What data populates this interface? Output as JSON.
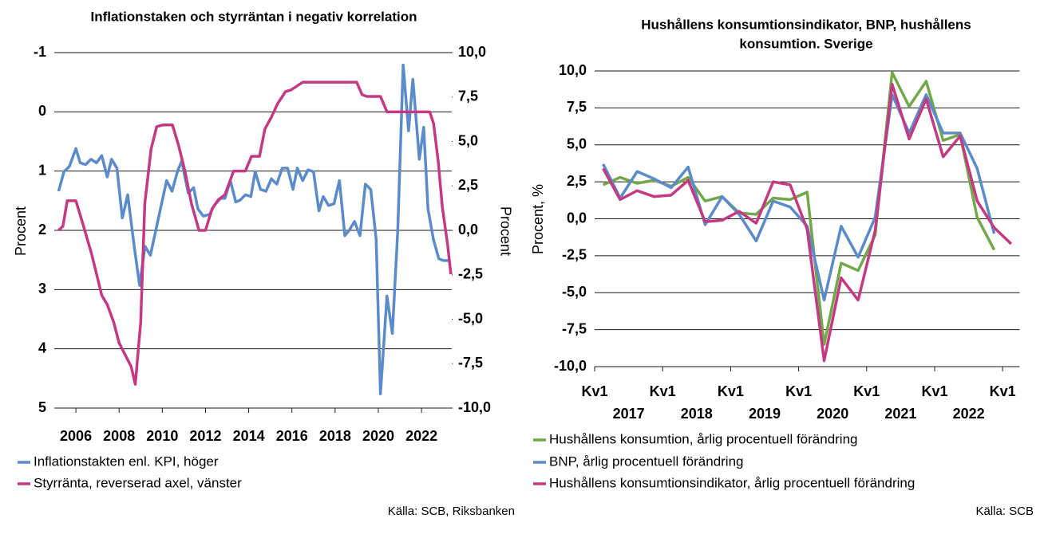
{
  "chart_data": [
    {
      "type": "line",
      "title": "Inflationstaken och styrräntan i negativ korrelation",
      "ylabel": "Procent",
      "y2label": "Procent",
      "xlim": [
        2005,
        2023.4
      ],
      "xticks": [
        2006,
        2008,
        2010,
        2012,
        2014,
        2016,
        2018,
        2020,
        2022
      ],
      "ylim": [
        5,
        -1
      ],
      "yticks": [
        -1,
        0,
        1,
        2,
        3,
        4,
        5
      ],
      "y2lim": [
        -10,
        10
      ],
      "y2ticks": [
        {
          "value": 10,
          "label": "10,0"
        },
        {
          "value": 7.5,
          "label": "7,5"
        },
        {
          "value": 5,
          "label": "5,0"
        },
        {
          "value": 2.5,
          "label": "2,5"
        },
        {
          "value": 0,
          "label": "0,0"
        },
        {
          "value": -2.5,
          "label": "-2,5"
        },
        {
          "value": -5,
          "label": "-5,0"
        },
        {
          "value": -7.5,
          "label": "-7,5"
        },
        {
          "value": -10,
          "label": "-10,0"
        }
      ],
      "grid": true,
      "series": [
        {
          "name": "Inflationstakten enl. KPI, höger",
          "color": "#5b8bc9",
          "axis": "y2",
          "x": [
            2005.2,
            2005.45,
            2005.7,
            2006.0,
            2006.2,
            2006.45,
            2006.7,
            2006.95,
            2007.2,
            2007.45,
            2007.65,
            2007.9,
            2008.15,
            2008.4,
            2008.7,
            2008.95,
            2009.2,
            2009.45,
            2009.7,
            2009.95,
            2010.2,
            2010.45,
            2010.7,
            2010.9,
            2011.2,
            2011.45,
            2011.65,
            2011.9,
            2012.2,
            2012.4,
            2012.7,
            2012.9,
            2013.15,
            2013.4,
            2013.6,
            2013.85,
            2014.1,
            2014.3,
            2014.55,
            2014.8,
            2015.05,
            2015.3,
            2015.55,
            2015.8,
            2016.05,
            2016.25,
            2016.5,
            2016.75,
            2017.0,
            2017.25,
            2017.45,
            2017.7,
            2017.95,
            2018.2,
            2018.45,
            2018.65,
            2018.9,
            2019.15,
            2019.4,
            2019.65,
            2019.9,
            2020.1,
            2020.4,
            2020.65,
            2020.9,
            2021.15,
            2021.4,
            2021.6,
            2021.9,
            2022.1,
            2022.3,
            2022.55,
            2022.8,
            2023.0,
            2023.3
          ],
          "values": [
            2.2,
            3.3,
            3.6,
            4.6,
            3.8,
            3.7,
            4.0,
            3.8,
            4.2,
            3.0,
            4.0,
            3.5,
            0.7,
            2.0,
            -0.9,
            -3.1,
            -0.9,
            -1.4,
            0.0,
            1.4,
            2.8,
            2.2,
            3.3,
            3.9,
            2.1,
            2.4,
            1.2,
            0.8,
            0.9,
            1.4,
            1.8,
            1.8,
            2.8,
            1.6,
            1.7,
            2.0,
            1.9,
            3.3,
            2.3,
            2.2,
            2.9,
            2.6,
            3.5,
            3.5,
            2.3,
            3.5,
            2.8,
            3.4,
            3.3,
            1.1,
            1.9,
            1.4,
            1.5,
            2.8,
            -0.3,
            0.0,
            0.5,
            -0.3,
            2.6,
            2.3,
            -0.5,
            -9.2,
            -3.7,
            -5.8,
            0.0,
            9.3,
            5.6,
            8.5,
            4.0,
            5.8,
            1.2,
            -0.5,
            -1.6,
            -1.7,
            -1.7
          ]
        },
        {
          "name": "Styrränta, reverserad axel, vänster",
          "color": "#c33a82",
          "axis": "y",
          "x": [
            2005.2,
            2005.4,
            2005.6,
            2006.0,
            2006.37,
            2006.73,
            2007.2,
            2007.45,
            2007.75,
            2008.0,
            2008.28,
            2008.56,
            2008.75,
            2009.0,
            2009.19,
            2009.48,
            2009.74,
            2010.03,
            2010.47,
            2010.75,
            2011.05,
            2011.35,
            2011.7,
            2012.0,
            2012.3,
            2012.6,
            2012.9,
            2013.3,
            2013.84,
            2014.13,
            2014.5,
            2014.75,
            2015.05,
            2015.34,
            2015.56,
            2015.7,
            2015.96,
            2016.5,
            2019.0,
            2019.25,
            2019.47,
            2020.1,
            2020.4,
            2022.38,
            2022.56,
            2022.78,
            2022.96,
            2023.2,
            2023.36
          ],
          "values": [
            2.0,
            1.93,
            1.5,
            1.5,
            1.95,
            2.4,
            3.1,
            3.25,
            3.55,
            3.9,
            4.1,
            4.3,
            4.6,
            3.55,
            1.55,
            0.63,
            0.25,
            0.22,
            0.22,
            0.56,
            1.0,
            1.55,
            2.0,
            2.0,
            1.64,
            1.48,
            1.4,
            1.0,
            1.0,
            0.75,
            0.75,
            0.29,
            0.09,
            -0.14,
            -0.26,
            -0.34,
            -0.37,
            -0.5,
            -0.5,
            -0.29,
            -0.26,
            -0.26,
            0.0,
            0.0,
            0.2,
            0.86,
            1.6,
            2.22,
            2.74
          ]
        }
      ],
      "source": "Källa: SCB, Riksbanken"
    },
    {
      "type": "line",
      "title": [
        "Hushållens konsumtionsindikator, BNP, hushållens",
        "konsumtion. Sverige"
      ],
      "ylabel": "Procent, %",
      "categories": [
        "Kv1",
        null,
        null,
        null,
        "Kv1",
        null,
        null,
        null,
        "Kv1",
        null,
        null,
        null,
        "Kv1",
        null,
        null,
        null,
        "Kv1",
        null,
        null,
        null,
        "Kv1",
        null,
        null,
        null,
        "Kv1"
      ],
      "year_labels": [
        "2017",
        "2018",
        "2019",
        "2020",
        "2021",
        "2022"
      ],
      "ylim": [
        -10,
        10
      ],
      "yticks": [
        {
          "value": 10,
          "label": "10,0"
        },
        {
          "value": 7.5,
          "label": "7,5"
        },
        {
          "value": 5,
          "label": "5,0"
        },
        {
          "value": 2.5,
          "label": "2,5"
        },
        {
          "value": 0,
          "label": "0,0"
        },
        {
          "value": -2.5,
          "label": "-2,5"
        },
        {
          "value": -5,
          "label": "-5,0"
        },
        {
          "value": -7.5,
          "label": "-7,5"
        },
        {
          "value": -10,
          "label": "-10,0"
        }
      ],
      "grid": true,
      "series": [
        {
          "name": "Hushållens konsumtion, årlig procentuell förändring",
          "color": "#72a84a",
          "values": [
            2.3,
            2.8,
            2.4,
            2.6,
            2.2,
            2.8,
            1.2,
            1.5,
            0.4,
            0.3,
            1.4,
            1.3,
            1.8,
            -8.5,
            -3.0,
            -3.5,
            -1.1,
            9.9,
            7.6,
            9.3,
            5.3,
            5.7,
            0.1,
            -2.1,
            null
          ]
        },
        {
          "name": "BNP, årlig procentuell förändring",
          "color": "#5b8bc9",
          "values": [
            3.7,
            1.4,
            3.2,
            2.7,
            2.1,
            3.5,
            -0.4,
            1.5,
            0.3,
            -1.5,
            1.2,
            0.8,
            -0.5,
            -5.5,
            -0.5,
            -2.6,
            0.1,
            8.4,
            5.8,
            8.4,
            5.8,
            5.8,
            3.4,
            -1.0,
            null
          ]
        },
        {
          "name": "Hushållens konsumtionsindikator, årlig procentuell förändring",
          "color": "#c33a82",
          "values": [
            3.4,
            1.3,
            1.9,
            1.5,
            1.6,
            2.6,
            -0.2,
            -0.1,
            0.5,
            -0.3,
            2.5,
            2.3,
            -0.7,
            -9.6,
            -4.0,
            -5.5,
            -0.8,
            9.1,
            5.4,
            8.1,
            4.2,
            5.6,
            1.2,
            -0.6,
            -1.7
          ]
        }
      ],
      "source": "Källa: SCB"
    }
  ]
}
